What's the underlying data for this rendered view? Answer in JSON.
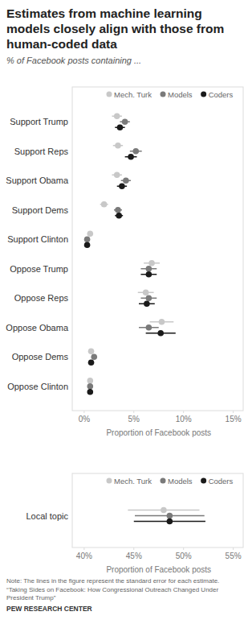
{
  "chart_data": [
    {
      "type": "dot",
      "title": "Estimates from machine learning models closely align with those from human-coded data",
      "subtitle": "% of Facebook posts containing ...",
      "x_label": "Proportion of Facebook posts",
      "orientation": "horizontal",
      "legend": "top",
      "grid": false,
      "categories": [
        "Support Trump",
        "Support Reps",
        "Support Obama",
        "Support Dems",
        "Support Clinton",
        "Oppose Trump",
        "Oppose Reps",
        "Oppose Obama",
        "Oppose Dems",
        "Oppose Clinton"
      ],
      "series": [
        {
          "name": "Mech. Turk",
          "color": "#c8c8c8",
          "values": [
            3.3,
            3.4,
            3.3,
            2.0,
            0.6,
            6.8,
            6.2,
            7.8,
            0.7,
            0.6
          ],
          "errors": [
            0.5,
            0.5,
            0.5,
            0.4,
            0.15,
            0.8,
            0.8,
            1.2,
            0.2,
            0.15
          ]
        },
        {
          "name": "Models",
          "color": "#7a7a7a",
          "values": [
            4.1,
            5.2,
            4.2,
            3.4,
            0.3,
            6.5,
            6.5,
            6.5,
            1.0,
            0.6
          ],
          "errors": [
            0.5,
            0.6,
            0.5,
            0.4,
            0.15,
            0.8,
            0.8,
            1.0,
            0.2,
            0.15
          ]
        },
        {
          "name": "Coders",
          "color": "#1a1a1a",
          "values": [
            3.6,
            4.7,
            3.8,
            3.5,
            0.3,
            6.5,
            6.3,
            7.7,
            0.7,
            0.6
          ],
          "errors": [
            0.5,
            0.6,
            0.5,
            0.4,
            0.15,
            0.8,
            0.8,
            1.5,
            0.2,
            0.15
          ]
        }
      ],
      "xlim": [
        -1.2,
        16
      ],
      "xticks": [
        {
          "value": 0,
          "label": "0%"
        },
        {
          "value": 5,
          "label": "5%"
        },
        {
          "value": 10,
          "label": "10%"
        },
        {
          "value": 15,
          "label": "15%"
        }
      ]
    },
    {
      "type": "dot",
      "x_label": "Proportion of Facebook posts",
      "orientation": "horizontal",
      "legend": "top",
      "grid": false,
      "categories": [
        "Local topic"
      ],
      "series": [
        {
          "name": "Mech. Turk",
          "color": "#c8c8c8",
          "values": [
            48.0
          ],
          "errors": [
            3.6
          ]
        },
        {
          "name": "Models",
          "color": "#7a7a7a",
          "values": [
            48.6
          ],
          "errors": [
            3.5
          ]
        },
        {
          "name": "Coders",
          "color": "#1a1a1a",
          "values": [
            48.6
          ],
          "errors": [
            3.6
          ]
        }
      ],
      "xlim": [
        38.8,
        56
      ],
      "xticks": [
        {
          "value": 40,
          "label": "40%"
        },
        {
          "value": 45,
          "label": "45%"
        },
        {
          "value": 50,
          "label": "50%"
        },
        {
          "value": 55,
          "label": "55%"
        }
      ]
    }
  ],
  "notes": {
    "note": "Note: The lines in the figure represent the standard error for each estimate.",
    "source": "“Taking Sides on Facebook: How Congressional Outreach Changed Under President Trump”",
    "credit": "PEW RESEARCH CENTER"
  }
}
